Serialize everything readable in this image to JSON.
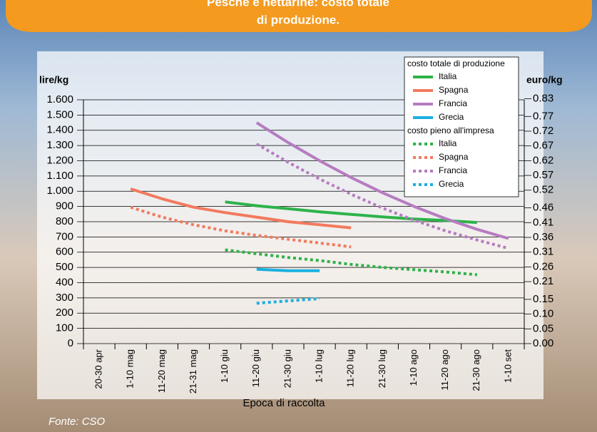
{
  "chart_data": {
    "type": "line",
    "title": "Pesche e nettarine: costo totale",
    "title_line2": "di produzione.",
    "ylabel": "lire/kg",
    "y2label": "euro/kg",
    "xlabel": "Epoca di raccolta",
    "source": "Fonte: CSO",
    "legend_titles": [
      "costo totale di produzione",
      "costo pieno all'impresa"
    ],
    "categories": [
      "20-30 apr",
      "1-10 mag",
      "11-20 mag",
      "21-31 mag",
      "1-10 giu",
      "11-20 giu",
      "21-30 giu",
      "1-10 lug",
      "11-20 lug",
      "21-30 lug",
      "1-10 ago",
      "11-20 ago",
      "21-30 ago",
      "1-10 set"
    ],
    "ylim": [
      0,
      1600
    ],
    "yticks": [
      0,
      100,
      200,
      300,
      400,
      500,
      600,
      700,
      800,
      900,
      {
        "value": 1000,
        "label": "1.000"
      },
      {
        "value": 1100,
        "label": "1.100"
      },
      {
        "value": 1200,
        "label": "1.200"
      },
      {
        "value": 1300,
        "label": "1.300"
      },
      {
        "value": 1400,
        "label": "1.400"
      },
      {
        "value": 1500,
        "label": "1.500"
      },
      {
        "value": 1600,
        "label": "1.600"
      }
    ],
    "y2lim": [
      0,
      0.8263
    ],
    "y2ticks": [
      {
        "value": 0,
        "label": "0.00"
      },
      {
        "value": 0.05,
        "label": "0.05"
      },
      {
        "value": 0.1,
        "label": "0.10"
      },
      {
        "value": 0.15,
        "label": "0.15"
      },
      {
        "value": 0.21,
        "label": "0.21"
      },
      {
        "value": 0.26,
        "label": "0.26"
      },
      {
        "value": 0.31,
        "label": "0.31"
      },
      {
        "value": 0.36,
        "label": "0.36"
      },
      {
        "value": 0.41,
        "label": "0.41"
      },
      {
        "value": 0.46,
        "label": "0.46"
      },
      {
        "value": 0.52,
        "label": "0.52"
      },
      {
        "value": 0.57,
        "label": "0.57"
      },
      {
        "value": 0.62,
        "label": "0.62"
      },
      {
        "value": 0.67,
        "label": "0.67"
      },
      {
        "value": 0.72,
        "label": "0.72"
      },
      {
        "value": 0.77,
        "label": "0.77"
      },
      {
        "value": 0.83,
        "label": "0.83"
      }
    ],
    "grid": true,
    "series": [
      {
        "name": "Italia",
        "color": "#2db34a",
        "dashed": false,
        "values": [
          null,
          null,
          null,
          null,
          930,
          905,
          885,
          865,
          848,
          832,
          818,
          808,
          795,
          null
        ]
      },
      {
        "name": "Spagna",
        "color": "#f27a5e",
        "dashed": false,
        "values": [
          null,
          1015,
          950,
          895,
          860,
          830,
          800,
          780,
          760,
          null,
          null,
          null,
          null,
          null
        ]
      },
      {
        "name": "Francia",
        "color": "#b67cc0",
        "dashed": false,
        "values": [
          null,
          null,
          null,
          null,
          null,
          1450,
          1320,
          1200,
          1090,
          990,
          900,
          820,
          750,
          690
        ]
      },
      {
        "name": "Grecia",
        "color": "#1ab0e0",
        "dashed": false,
        "values": [
          null,
          null,
          null,
          null,
          null,
          488,
          478,
          478,
          null,
          null,
          null,
          null,
          null,
          null
        ]
      },
      {
        "name": "Italia",
        "color": "#2db34a",
        "dashed": true,
        "values": [
          null,
          null,
          null,
          null,
          615,
          590,
          565,
          545,
          520,
          500,
          485,
          470,
          452,
          null
        ]
      },
      {
        "name": "Spagna",
        "color": "#f27a5e",
        "dashed": true,
        "values": [
          null,
          895,
          830,
          780,
          740,
          710,
          685,
          660,
          635,
          null,
          null,
          null,
          null,
          null
        ]
      },
      {
        "name": "Francia",
        "color": "#b67cc0",
        "dashed": true,
        "values": [
          null,
          null,
          null,
          null,
          null,
          1310,
          1190,
          1080,
          980,
          890,
          810,
          740,
          680,
          625
        ]
      },
      {
        "name": "Grecia",
        "color": "#1ab0e0",
        "dashed": true,
        "values": [
          null,
          null,
          null,
          null,
          null,
          265,
          280,
          295,
          null,
          null,
          null,
          null,
          null,
          null
        ]
      }
    ]
  }
}
